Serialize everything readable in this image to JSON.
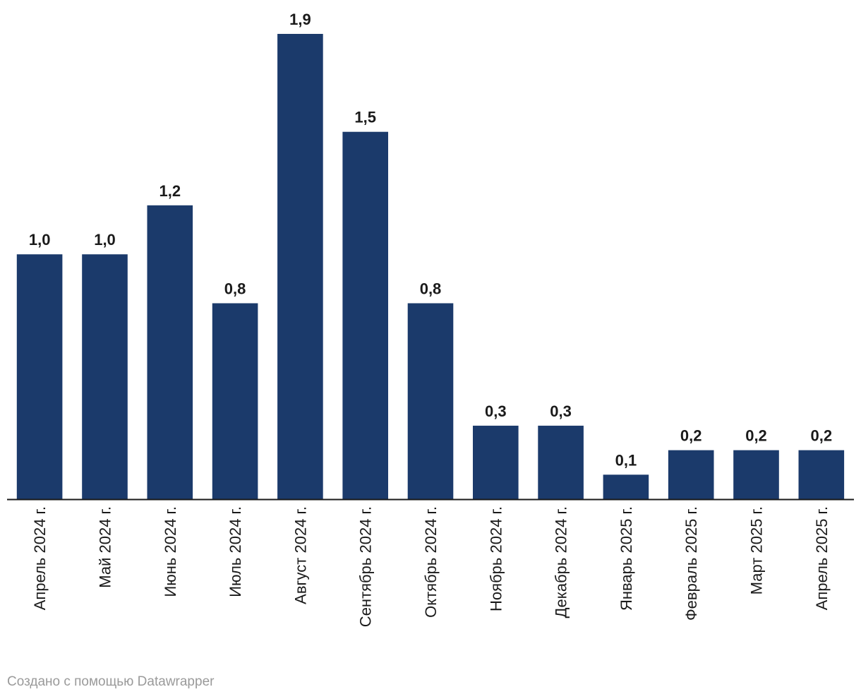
{
  "chart_data": {
    "type": "bar",
    "categories": [
      "Апрель 2024 г.",
      "Май 2024 г.",
      "Июнь 2024 г.",
      "Июль 2024 г.",
      "Август 2024 г.",
      "Сентябрь 2024 г.",
      "Октябрь 2024 г.",
      "Ноябрь 2024 г.",
      "Декабрь 2024 г.",
      "Январь 2025 г.",
      "Февраль 2025 г.",
      "Март 2025 г.",
      "Апрель 2025 г."
    ],
    "values": [
      1.0,
      1.0,
      1.2,
      0.8,
      1.9,
      1.5,
      0.8,
      0.3,
      0.3,
      0.1,
      0.2,
      0.2,
      0.2
    ],
    "value_labels": [
      "1,0",
      "1,0",
      "1,2",
      "0,8",
      "1,9",
      "1,5",
      "0,8",
      "0,3",
      "0,3",
      "0,1",
      "0,2",
      "0,2",
      "0,2"
    ],
    "title": "",
    "xlabel": "",
    "ylabel": "",
    "ylim": [
      0,
      1.9
    ],
    "grid": false,
    "legend": "none",
    "bar_color": "#1b3a6b",
    "axis_color": "#1a1a1a",
    "label_color": "#1a1a1a"
  },
  "footer": {
    "credit": "Создано с помощью Datawrapper"
  }
}
